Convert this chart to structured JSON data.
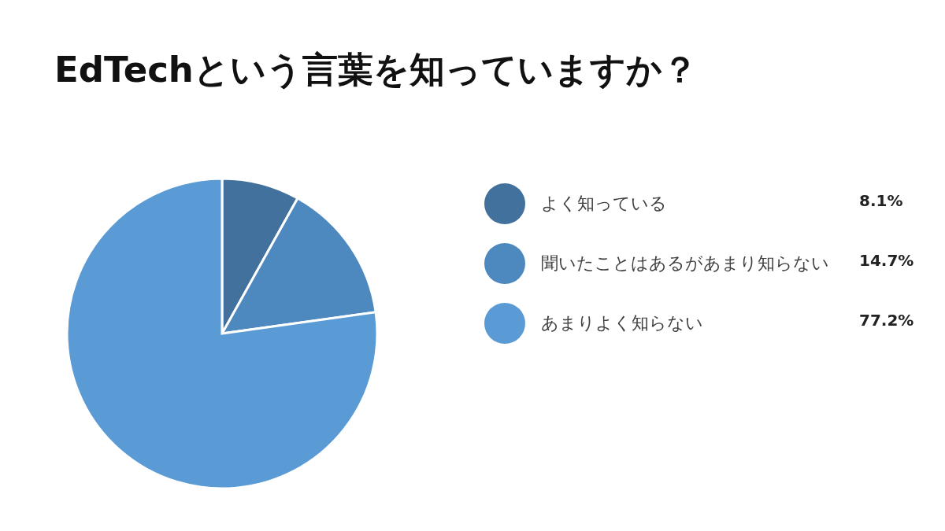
{
  "chart_data": {
    "type": "pie",
    "title": "EdTechという言葉を知っていますか？",
    "categories": [
      "よく知っている",
      "聞いたことはあるがあまり知らない",
      "あまりよく知らない"
    ],
    "values": [
      8.1,
      14.7,
      77.2
    ],
    "colors": [
      "#41719c",
      "#4d88bf",
      "#5b9bd5"
    ],
    "value_labels": [
      "8.1%",
      "14.7%",
      "77.2%"
    ],
    "legend": "right"
  }
}
